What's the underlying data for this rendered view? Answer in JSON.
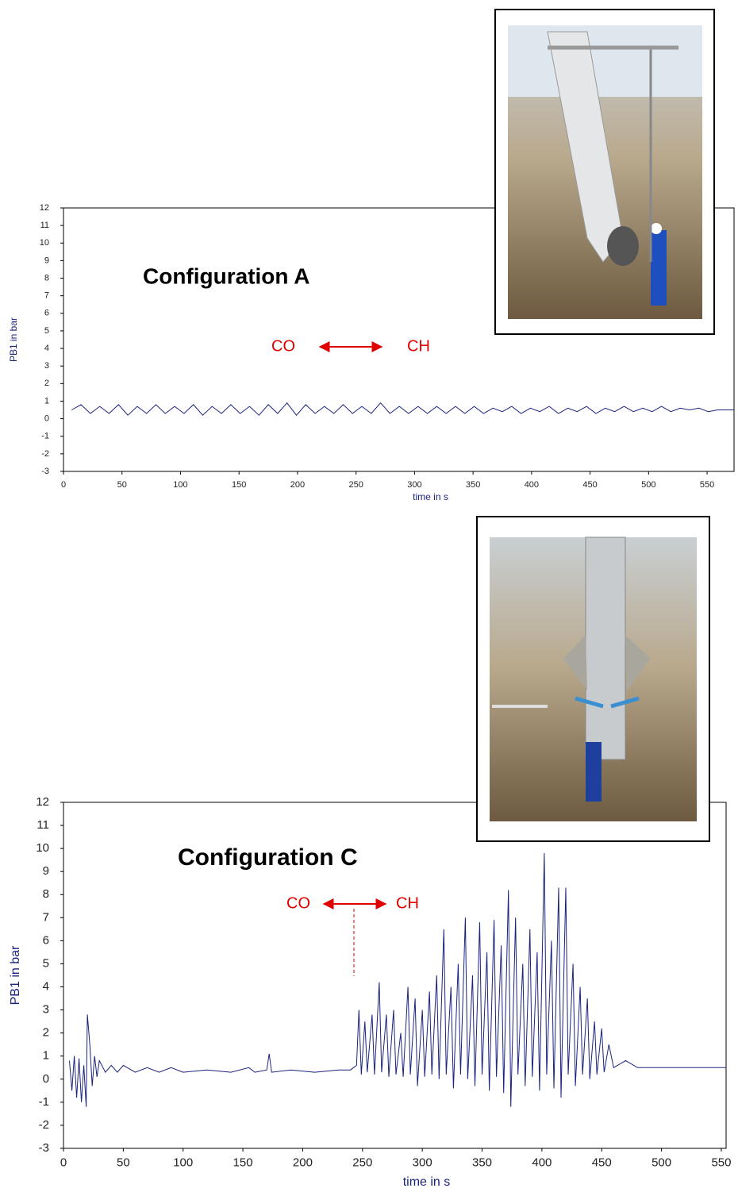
{
  "chart_data": [
    {
      "type": "line",
      "title": "Configuration A",
      "annotations": [
        "CO",
        "CH"
      ],
      "x_label": "time in s",
      "y_label": "PB1 in bar",
      "color": "#1a237e",
      "xlim": [
        0,
        573
      ],
      "ylim": [
        -3,
        12
      ],
      "xticks": [
        0,
        50,
        100,
        150,
        200,
        250,
        300,
        350,
        400,
        450,
        500,
        550
      ],
      "yticks": [
        -3,
        -2,
        -1,
        0,
        1,
        2,
        3,
        4,
        5,
        6,
        7,
        8,
        9,
        10,
        11,
        12
      ],
      "x": [
        7,
        15,
        23,
        31,
        39,
        47,
        55,
        63,
        71,
        79,
        87,
        95,
        103,
        111,
        119,
        127,
        135,
        143,
        151,
        159,
        167,
        175,
        183,
        191,
        199,
        207,
        215,
        223,
        231,
        239,
        247,
        255,
        263,
        271,
        279,
        287,
        295,
        303,
        311,
        319,
        327,
        335,
        343,
        351,
        359,
        367,
        375,
        383,
        391,
        399,
        407,
        415,
        423,
        431,
        439,
        447,
        455,
        463,
        471,
        479,
        487,
        495,
        503,
        511,
        519,
        527,
        535,
        543,
        551,
        559,
        567,
        573
      ],
      "values": [
        0.5,
        0.8,
        0.3,
        0.7,
        0.3,
        0.8,
        0.2,
        0.7,
        0.3,
        0.8,
        0.3,
        0.7,
        0.3,
        0.8,
        0.2,
        0.7,
        0.3,
        0.8,
        0.3,
        0.7,
        0.2,
        0.8,
        0.3,
        0.9,
        0.2,
        0.8,
        0.3,
        0.7,
        0.3,
        0.8,
        0.3,
        0.7,
        0.3,
        0.9,
        0.3,
        0.7,
        0.3,
        0.7,
        0.3,
        0.7,
        0.3,
        0.7,
        0.3,
        0.7,
        0.3,
        0.6,
        0.4,
        0.7,
        0.3,
        0.6,
        0.4,
        0.7,
        0.3,
        0.6,
        0.4,
        0.7,
        0.3,
        0.6,
        0.4,
        0.7,
        0.4,
        0.6,
        0.4,
        0.7,
        0.4,
        0.6,
        0.5,
        0.6,
        0.4,
        0.5,
        0.5,
        0.5
      ]
    },
    {
      "type": "line",
      "title": "Configuration C",
      "annotations": [
        "CO",
        "CH"
      ],
      "x_label": "time in s",
      "y_label": "PB1 in bar",
      "color": "#1a237e",
      "xlim": [
        0,
        554
      ],
      "ylim": [
        -3,
        12
      ],
      "xticks": [
        0,
        50,
        100,
        150,
        200,
        250,
        300,
        350,
        400,
        450,
        500,
        550
      ],
      "yticks": [
        -3,
        -2,
        -1,
        0,
        1,
        2,
        3,
        4,
        5,
        6,
        7,
        8,
        9,
        10,
        11,
        12
      ],
      "x": [
        5,
        7,
        9,
        11,
        13,
        15,
        17,
        19,
        20,
        22,
        24,
        26,
        28,
        30,
        35,
        40,
        45,
        50,
        60,
        70,
        80,
        90,
        100,
        120,
        140,
        155,
        160,
        170,
        172,
        174,
        190,
        210,
        230,
        240,
        245,
        247,
        249,
        252,
        254,
        258,
        260,
        264,
        266,
        270,
        272,
        276,
        278,
        282,
        284,
        288,
        290,
        294,
        296,
        300,
        302,
        306,
        308,
        312,
        314,
        318,
        320,
        324,
        326,
        330,
        332,
        336,
        338,
        342,
        344,
        348,
        350,
        354,
        356,
        360,
        362,
        366,
        368,
        372,
        374,
        378,
        380,
        384,
        386,
        390,
        392,
        396,
        398,
        402,
        404,
        408,
        410,
        414,
        416,
        420,
        422,
        426,
        428,
        432,
        434,
        438,
        440,
        444,
        446,
        450,
        452,
        456,
        460,
        470,
        480,
        490,
        520,
        554
      ],
      "values": [
        0.8,
        -0.5,
        1.0,
        -0.8,
        0.9,
        -1.0,
        0.6,
        -1.2,
        2.8,
        1.5,
        -0.3,
        1.0,
        0.1,
        0.8,
        0.3,
        0.6,
        0.3,
        0.6,
        0.3,
        0.5,
        0.3,
        0.5,
        0.3,
        0.4,
        0.3,
        0.5,
        0.3,
        0.4,
        1.1,
        0.3,
        0.4,
        0.3,
        0.4,
        0.4,
        0.6,
        3.0,
        0.2,
        2.5,
        0.3,
        2.8,
        0.2,
        4.2,
        0.3,
        2.8,
        0.1,
        3.0,
        0.2,
        2.0,
        0.1,
        4.0,
        0.2,
        3.5,
        -0.3,
        3.0,
        0.1,
        3.8,
        0.2,
        4.5,
        0.0,
        6.5,
        0.2,
        4.0,
        -0.4,
        5.0,
        0.2,
        7.0,
        0.0,
        4.5,
        -0.3,
        6.8,
        0.2,
        5.5,
        -0.5,
        6.9,
        0.1,
        5.8,
        -0.6,
        8.2,
        -1.2,
        7.0,
        0.2,
        5.0,
        -0.3,
        6.5,
        0.1,
        5.5,
        -0.5,
        9.8,
        0.2,
        6.0,
        -0.4,
        8.3,
        -0.8,
        8.3,
        0.2,
        5.0,
        -0.3,
        4.0,
        0.2,
        3.5,
        0.0,
        2.5,
        0.2,
        2.2,
        0.3,
        1.5,
        0.5,
        0.8,
        0.5,
        0.5,
        0.5,
        0.5
      ]
    }
  ]
}
